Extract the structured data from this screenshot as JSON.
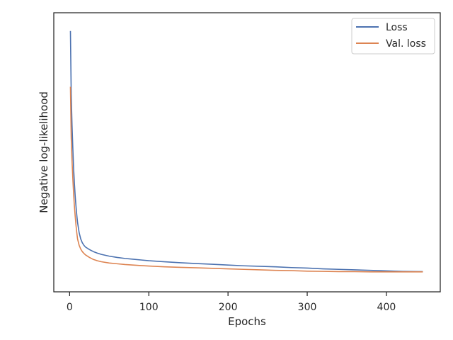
{
  "chart_data": {
    "type": "line",
    "title": "",
    "xlabel": "Epochs",
    "ylabel": "Negative log-likelihood",
    "xlim": [
      -20,
      468
    ],
    "ylim": [
      0,
      1
    ],
    "xticks": [
      0,
      100,
      200,
      300,
      400
    ],
    "yticks_shown": false,
    "grid": false,
    "legend_position": "top-right",
    "series": [
      {
        "name": "Loss",
        "color": "#4c72b0",
        "x": [
          1,
          2,
          3,
          4,
          5,
          6,
          7,
          8,
          9,
          10,
          12,
          14,
          16,
          18,
          20,
          25,
          30,
          35,
          40,
          50,
          60,
          70,
          80,
          90,
          100,
          120,
          140,
          160,
          180,
          200,
          220,
          240,
          260,
          280,
          300,
          320,
          340,
          360,
          380,
          400,
          420,
          440,
          446
        ],
        "y": [
          0.97,
          0.72,
          0.6,
          0.51,
          0.43,
          0.37,
          0.32,
          0.28,
          0.245,
          0.215,
          0.175,
          0.15,
          0.135,
          0.125,
          0.118,
          0.108,
          0.1,
          0.094,
          0.089,
          0.082,
          0.077,
          0.073,
          0.07,
          0.067,
          0.064,
          0.06,
          0.056,
          0.053,
          0.05,
          0.047,
          0.044,
          0.042,
          0.04,
          0.037,
          0.035,
          0.032,
          0.03,
          0.028,
          0.026,
          0.024,
          0.022,
          0.021,
          0.021
        ]
      },
      {
        "name": "Val. loss",
        "color": "#dd8452",
        "x": [
          1,
          2,
          3,
          4,
          5,
          6,
          7,
          8,
          9,
          10,
          12,
          14,
          16,
          18,
          20,
          25,
          30,
          35,
          40,
          50,
          60,
          70,
          80,
          90,
          100,
          120,
          140,
          160,
          180,
          200,
          220,
          240,
          260,
          280,
          300,
          320,
          340,
          360,
          380,
          400,
          420,
          440,
          446
        ],
        "y": [
          0.75,
          0.55,
          0.46,
          0.39,
          0.33,
          0.28,
          0.24,
          0.205,
          0.175,
          0.15,
          0.125,
          0.11,
          0.1,
          0.093,
          0.087,
          0.077,
          0.069,
          0.064,
          0.06,
          0.055,
          0.052,
          0.049,
          0.047,
          0.045,
          0.043,
          0.04,
          0.038,
          0.036,
          0.034,
          0.032,
          0.03,
          0.028,
          0.026,
          0.025,
          0.023,
          0.022,
          0.021,
          0.021,
          0.02,
          0.02,
          0.02,
          0.02,
          0.02
        ]
      }
    ]
  }
}
